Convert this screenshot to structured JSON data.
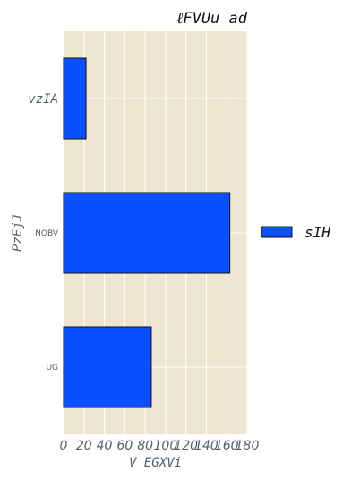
{
  "chart_data": {
    "type": "bar",
    "orientation": "horizontal",
    "title": "ℓFVUu ad",
    "xlabel": "V EGXVi",
    "ylabel": "PzEjJ",
    "categories": [
      "vzIA",
      "NQBV",
      "UG"
    ],
    "series": [
      {
        "name": "sIH",
        "values": [
          22,
          163,
          86
        ],
        "color": "#0a50ff"
      }
    ],
    "xlim": [
      0,
      180
    ],
    "xticks": [
      0,
      20,
      40,
      60,
      80,
      100,
      120,
      140,
      160,
      180
    ],
    "grid": true,
    "legend": "right",
    "colors": {
      "plot_background": "#efe6d2",
      "grid": "#ffffff",
      "bar_edge": "#111111",
      "text": "#555f66"
    }
  }
}
